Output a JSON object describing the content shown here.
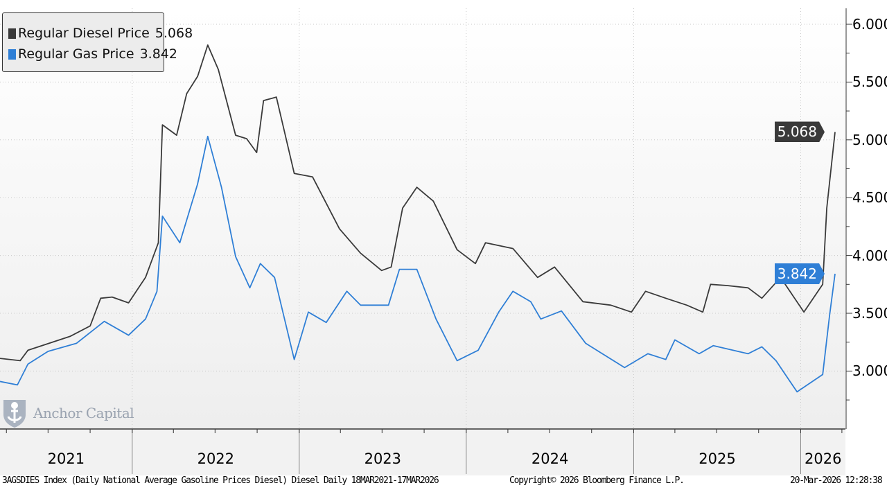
{
  "chart_data": {
    "type": "line",
    "title": "",
    "xlabel": "",
    "ylabel": "",
    "x_axis": {
      "type": "date",
      "range": [
        "2021-03-18",
        "2026-03-17"
      ],
      "tick_labels": [
        "2021",
        "2022",
        "2023",
        "2024",
        "2025",
        "2026"
      ]
    },
    "y_axis": {
      "position": "right",
      "range": [
        2.5,
        6.1
      ],
      "tick_labels": [
        "6.000",
        "5.500",
        "5.000",
        "4.500",
        "4.000",
        "3.500",
        "3.000"
      ],
      "ticks": [
        6.0,
        5.5,
        5.0,
        4.5,
        4.0,
        3.5,
        3.0
      ]
    },
    "grid": true,
    "legend_placement": "top-left",
    "series": [
      {
        "name": "Regular Diesel Price",
        "last_value": "5.068",
        "color": "#3a3a3a",
        "points": [
          [
            "2021-03-18",
            3.11
          ],
          [
            "2021-05-01",
            3.09
          ],
          [
            "2021-05-18",
            3.18
          ],
          [
            "2021-08-18",
            3.3
          ],
          [
            "2021-10-01",
            3.39
          ],
          [
            "2021-10-24",
            3.63
          ],
          [
            "2021-11-18",
            3.64
          ],
          [
            "2021-12-24",
            3.59
          ],
          [
            "2022-01-30",
            3.81
          ],
          [
            "2022-02-27",
            4.11
          ],
          [
            "2022-03-08",
            5.13
          ],
          [
            "2022-04-08",
            5.04
          ],
          [
            "2022-04-30",
            5.4
          ],
          [
            "2022-05-24",
            5.55
          ],
          [
            "2022-06-15",
            5.82
          ],
          [
            "2022-07-08",
            5.61
          ],
          [
            "2022-08-15",
            5.04
          ],
          [
            "2022-09-08",
            5.01
          ],
          [
            "2022-09-30",
            4.89
          ],
          [
            "2022-10-15",
            5.34
          ],
          [
            "2022-11-12",
            5.37
          ],
          [
            "2022-12-21",
            4.71
          ],
          [
            "2023-01-30",
            4.68
          ],
          [
            "2023-03-30",
            4.23
          ],
          [
            "2023-05-15",
            4.02
          ],
          [
            "2023-06-30",
            3.87
          ],
          [
            "2023-07-21",
            3.9
          ],
          [
            "2023-08-15",
            4.41
          ],
          [
            "2023-09-15",
            4.59
          ],
          [
            "2023-10-21",
            4.47
          ],
          [
            "2023-12-12",
            4.05
          ],
          [
            "2024-01-21",
            3.93
          ],
          [
            "2024-02-12",
            4.11
          ],
          [
            "2024-04-12",
            4.06
          ],
          [
            "2024-06-05",
            3.81
          ],
          [
            "2024-07-12",
            3.9
          ],
          [
            "2024-09-12",
            3.6
          ],
          [
            "2024-11-12",
            3.57
          ],
          [
            "2024-12-27",
            3.51
          ],
          [
            "2025-01-27",
            3.69
          ],
          [
            "2025-03-12",
            3.63
          ],
          [
            "2025-04-27",
            3.57
          ],
          [
            "2025-06-01",
            3.51
          ],
          [
            "2025-06-18",
            3.75
          ],
          [
            "2025-07-24",
            3.74
          ],
          [
            "2025-09-08",
            3.72
          ],
          [
            "2025-10-08",
            3.63
          ],
          [
            "2025-11-18",
            3.81
          ],
          [
            "2026-01-08",
            3.51
          ],
          [
            "2026-02-18",
            3.75
          ],
          [
            "2026-02-27",
            4.41
          ],
          [
            "2026-03-17",
            5.068
          ]
        ]
      },
      {
        "name": "Regular Gas Price",
        "last_value": "3.842",
        "color": "#2f7fd6",
        "points": [
          [
            "2021-03-18",
            2.91
          ],
          [
            "2021-04-25",
            2.88
          ],
          [
            "2021-05-18",
            3.06
          ],
          [
            "2021-07-01",
            3.17
          ],
          [
            "2021-09-01",
            3.24
          ],
          [
            "2021-11-01",
            3.43
          ],
          [
            "2021-12-24",
            3.31
          ],
          [
            "2022-01-30",
            3.45
          ],
          [
            "2022-02-24",
            3.69
          ],
          [
            "2022-03-08",
            4.34
          ],
          [
            "2022-04-15",
            4.11
          ],
          [
            "2022-05-24",
            4.62
          ],
          [
            "2022-06-15",
            5.03
          ],
          [
            "2022-07-15",
            4.59
          ],
          [
            "2022-08-15",
            3.99
          ],
          [
            "2022-09-15",
            3.72
          ],
          [
            "2022-10-08",
            3.93
          ],
          [
            "2022-11-08",
            3.81
          ],
          [
            "2022-12-21",
            3.1
          ],
          [
            "2023-01-21",
            3.51
          ],
          [
            "2023-03-01",
            3.42
          ],
          [
            "2023-04-15",
            3.69
          ],
          [
            "2023-05-15",
            3.57
          ],
          [
            "2023-07-15",
            3.57
          ],
          [
            "2023-08-08",
            3.88
          ],
          [
            "2023-09-15",
            3.88
          ],
          [
            "2023-10-27",
            3.45
          ],
          [
            "2023-12-12",
            3.09
          ],
          [
            "2024-01-27",
            3.18
          ],
          [
            "2024-03-12",
            3.51
          ],
          [
            "2024-04-12",
            3.69
          ],
          [
            "2024-05-21",
            3.6
          ],
          [
            "2024-06-12",
            3.45
          ],
          [
            "2024-07-27",
            3.52
          ],
          [
            "2024-09-18",
            3.24
          ],
          [
            "2024-12-12",
            3.03
          ],
          [
            "2025-02-01",
            3.15
          ],
          [
            "2025-03-12",
            3.1
          ],
          [
            "2025-04-01",
            3.27
          ],
          [
            "2025-05-24",
            3.15
          ],
          [
            "2025-06-24",
            3.22
          ],
          [
            "2025-09-08",
            3.15
          ],
          [
            "2025-10-08",
            3.21
          ],
          [
            "2025-11-08",
            3.09
          ],
          [
            "2025-12-24",
            2.82
          ],
          [
            "2026-02-18",
            2.97
          ],
          [
            "2026-03-05",
            3.48
          ],
          [
            "2026-03-17",
            3.842
          ]
        ]
      }
    ]
  },
  "legend": [
    {
      "name": "Regular Diesel Price",
      "value": "5.068",
      "color": "#3a3a3a"
    },
    {
      "name": "Regular Gas Price",
      "value": "3.842",
      "color": "#2f7fd6"
    }
  ],
  "logo": {
    "text": "Anchor Capital",
    "icon": "anchor-shield-icon"
  },
  "footer": {
    "description": "3AGSDIES Index (Daily National Average Gasoline Prices Diesel) Diesel Daily 18MAR2021-17MAR2026",
    "copyright": "Copyright© 2026 Bloomberg Finance L.P.",
    "timestamp": "20-Mar-2026 12:28:38"
  }
}
